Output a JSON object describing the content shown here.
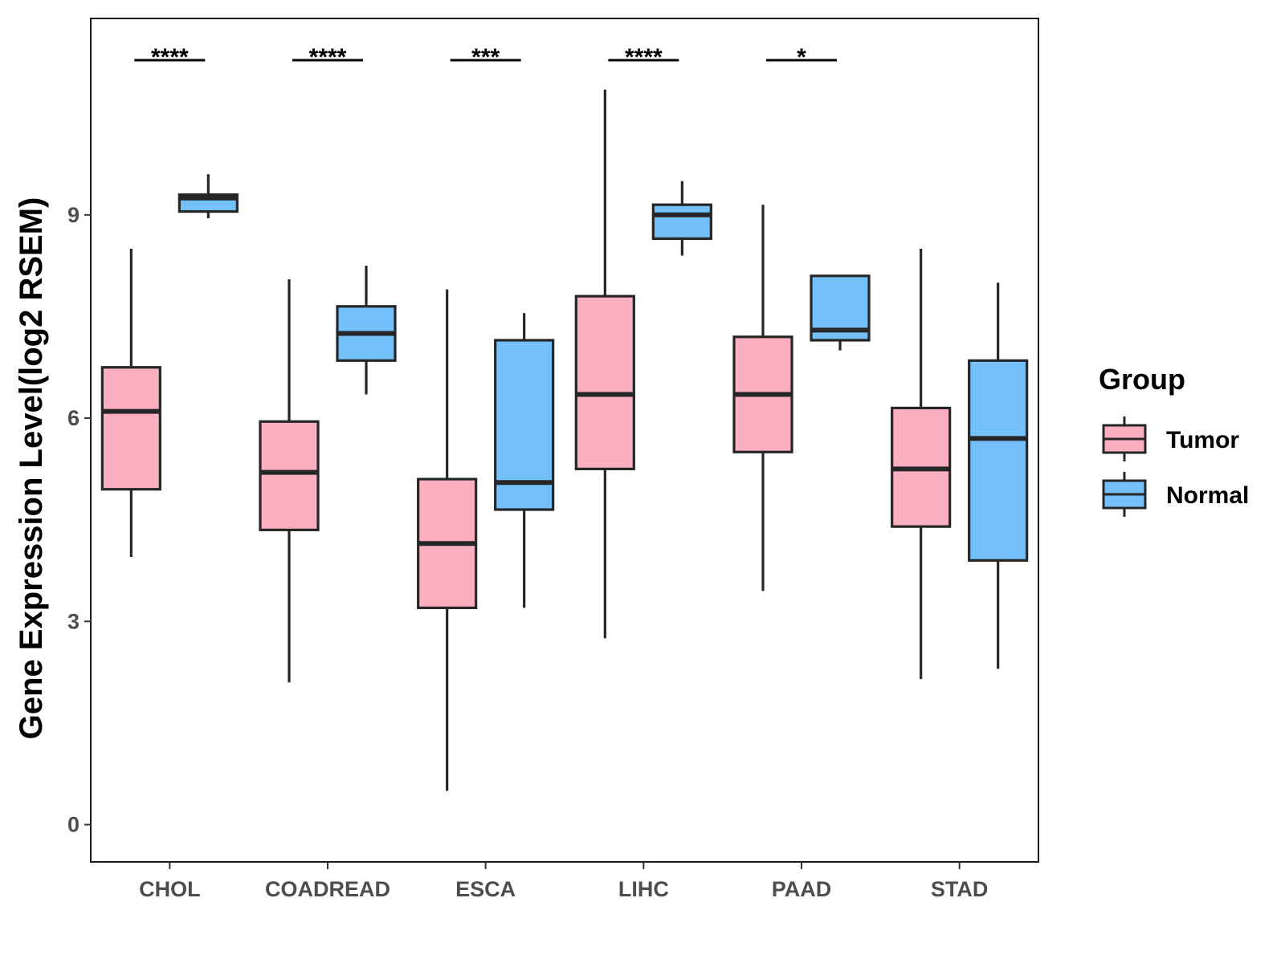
{
  "chart_data": {
    "type": "boxplot",
    "title": "",
    "xlabel": "",
    "ylabel": "Gene Expression Level(log2 RSEM)",
    "ylim": [
      -0.55,
      11.9
    ],
    "yticks": [
      0,
      3,
      6,
      9
    ],
    "categories": [
      "CHOL",
      "COADREAD",
      "ESCA",
      "LIHC",
      "PAAD",
      "STAD"
    ],
    "legend": {
      "title": "Group",
      "position": "right"
    },
    "series": [
      {
        "name": "Tumor",
        "color": "#FBB0C1",
        "boxes": [
          {
            "min": 3.95,
            "q1": 4.95,
            "median": 6.1,
            "q3": 6.75,
            "max": 8.5
          },
          {
            "min": 2.1,
            "q1": 4.35,
            "median": 5.2,
            "q3": 5.95,
            "max": 8.05
          },
          {
            "min": 0.5,
            "q1": 3.2,
            "median": 4.15,
            "q3": 5.1,
            "max": 7.9
          },
          {
            "min": 2.75,
            "q1": 5.25,
            "median": 6.35,
            "q3": 7.8,
            "max": 10.85
          },
          {
            "min": 3.45,
            "q1": 5.5,
            "median": 6.35,
            "q3": 7.2,
            "max": 9.15
          },
          {
            "min": 2.15,
            "q1": 4.4,
            "median": 5.25,
            "q3": 6.15,
            "max": 8.5
          }
        ]
      },
      {
        "name": "Normal",
        "color": "#74C0F9",
        "boxes": [
          {
            "min": 8.95,
            "q1": 9.05,
            "median": 9.25,
            "q3": 9.3,
            "max": 9.6
          },
          {
            "min": 6.35,
            "q1": 6.85,
            "median": 7.25,
            "q3": 7.65,
            "max": 8.25
          },
          {
            "min": 3.2,
            "q1": 4.65,
            "median": 5.05,
            "q3": 7.15,
            "max": 7.55
          },
          {
            "min": 8.4,
            "q1": 8.65,
            "median": 9.0,
            "q3": 9.15,
            "max": 9.5
          },
          {
            "min": 7.0,
            "q1": 7.15,
            "median": 7.3,
            "q3": 8.1,
            "max": 8.1
          },
          {
            "min": 2.3,
            "q1": 3.9,
            "median": 5.7,
            "q3": 6.85,
            "max": 8.0
          }
        ]
      }
    ],
    "significance": [
      "****",
      "****",
      "***",
      "****",
      "*",
      ""
    ]
  }
}
